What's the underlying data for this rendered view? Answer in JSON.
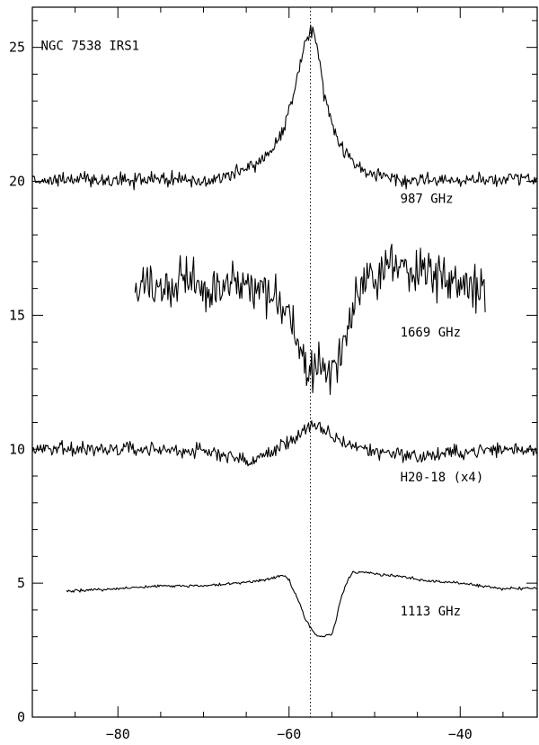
{
  "chart_data": {
    "type": "line",
    "title": "",
    "xlabel": "",
    "ylabel": "",
    "xlim": [
      -90,
      -31
    ],
    "ylim": [
      0,
      26.5
    ],
    "x_ticks": [
      -80,
      -60,
      -40
    ],
    "y_ticks": [
      0,
      5,
      10,
      15,
      20,
      25
    ],
    "reference_line": {
      "x": -57.5,
      "style": "dotted"
    },
    "annotations": [
      {
        "id": "source",
        "text": "NGC 7538 IRS1",
        "x": -89,
        "y": 24.9
      },
      {
        "id": "l987",
        "text": "987 GHz",
        "x": -47,
        "y": 19.2
      },
      {
        "id": "l1669",
        "text": "1669 GHz",
        "x": -47,
        "y": 14.2
      },
      {
        "id": "lh2o",
        "text": "H20-18 (x4)",
        "x": -47,
        "y": 8.8
      },
      {
        "id": "l1113",
        "text": "1113 GHz",
        "x": -47,
        "y": 3.8
      }
    ],
    "series": [
      {
        "id": "987",
        "x": [
          -90,
          -85,
          -80,
          -75,
          -70,
          -67,
          -64,
          -62,
          -60.5,
          -59.5,
          -58.5,
          -58,
          -57.5,
          -57,
          -56.5,
          -56,
          -55,
          -54,
          -53,
          -51,
          -49,
          -47,
          -44,
          -40,
          -35,
          -31
        ],
        "y": [
          20.0,
          20.1,
          20.0,
          20.1,
          20.0,
          20.2,
          20.6,
          21.2,
          22.0,
          23.2,
          24.6,
          25.4,
          25.6,
          25.4,
          24.6,
          23.4,
          22.2,
          21.4,
          20.9,
          20.4,
          20.2,
          20.0,
          20.1,
          20.0,
          20.1,
          20.1
        ],
        "noise": 0.28
      },
      {
        "id": "1669",
        "x": [
          -78,
          -75,
          -72,
          -70,
          -67,
          -65,
          -63,
          -61.5,
          -60,
          -59.5,
          -58.5,
          -57.5,
          -56.5,
          -55.5,
          -54.5,
          -54,
          -53,
          -52,
          -51,
          -50,
          -48,
          -46,
          -44,
          -42,
          -40,
          -37
        ],
        "y": [
          16.0,
          16.1,
          16.2,
          16.2,
          16.0,
          16.1,
          16.0,
          15.8,
          15.2,
          14.2,
          13.4,
          12.8,
          12.9,
          12.6,
          12.9,
          13.6,
          14.8,
          15.9,
          16.4,
          16.6,
          16.8,
          16.8,
          16.6,
          16.4,
          16.1,
          16.2
        ],
        "noise": 1.0
      },
      {
        "id": "h2o18",
        "x": [
          -90,
          -85,
          -80,
          -75,
          -70,
          -67,
          -65,
          -64,
          -62,
          -60,
          -59,
          -58,
          -57,
          -56,
          -55,
          -54,
          -52,
          -50,
          -48,
          -45,
          -40,
          -35,
          -31
        ],
        "y": [
          10.0,
          10.0,
          10.0,
          10.0,
          9.9,
          9.8,
          9.5,
          9.6,
          9.9,
          10.3,
          10.5,
          10.8,
          10.8,
          10.7,
          10.5,
          10.3,
          10.1,
          9.9,
          9.9,
          9.7,
          9.9,
          10.0,
          10.0
        ],
        "noise": 0.3
      },
      {
        "id": "1113",
        "x": [
          -86,
          -80,
          -75,
          -70,
          -66,
          -63,
          -61.5,
          -60.5,
          -60,
          -59,
          -58,
          -57,
          -56.5,
          -56,
          -55,
          -54.5,
          -54,
          -53,
          -52.5,
          -51,
          -48,
          -44,
          -40,
          -35,
          -31
        ],
        "y": [
          4.7,
          4.8,
          4.9,
          4.9,
          5.0,
          5.1,
          5.25,
          5.3,
          5.1,
          4.4,
          3.6,
          3.1,
          3.0,
          3.0,
          3.1,
          3.6,
          4.4,
          5.2,
          5.4,
          5.4,
          5.3,
          5.1,
          5.0,
          4.8,
          4.8
        ],
        "noise": 0.06
      }
    ]
  }
}
